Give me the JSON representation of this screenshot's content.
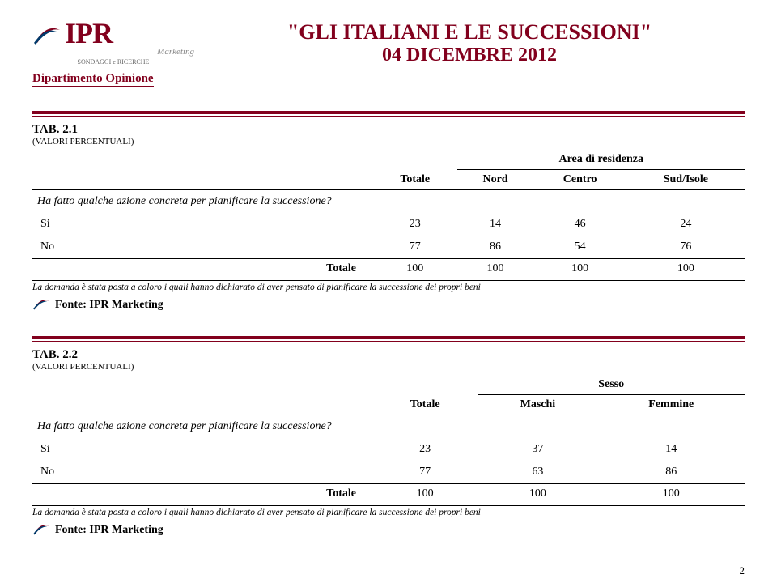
{
  "header": {
    "logo_main": "IPR",
    "logo_tagline": "Marketing",
    "logo_sub": "SONDAGGI e RICERCHE",
    "department": "Dipartimento Opinione",
    "title": "\"GLI ITALIANI E LE SUCCESSIONI\"",
    "date": "04 DICEMBRE 2012"
  },
  "colors": {
    "brand": "#82001d",
    "text": "#000000",
    "bg": "#ffffff"
  },
  "tables": [
    {
      "label": "TAB. 2.1",
      "sublabel": "(VALORI PERCENTUALI)",
      "group_header": "Area di residenza",
      "columns": [
        "Totale",
        "Nord",
        "Centro",
        "Sud/Isole"
      ],
      "question": "Ha fatto qualche azione concreta per pianificare la successione?",
      "rows": [
        {
          "label": "Si",
          "values": [
            23,
            14,
            46,
            24
          ]
        },
        {
          "label": "No",
          "values": [
            77,
            86,
            54,
            76
          ]
        }
      ],
      "total_label": "Totale",
      "totals": [
        100,
        100,
        100,
        100
      ],
      "footnote": "La domanda è stata posta a coloro i quali hanno dichiarato di aver pensato di pianificare la successione dei propri beni",
      "source": "Fonte: IPR Marketing"
    },
    {
      "label": "TAB. 2.2",
      "sublabel": "(VALORI PERCENTUALI)",
      "group_header": "Sesso",
      "columns": [
        "Totale",
        "Maschi",
        "Femmine"
      ],
      "question": "Ha fatto qualche azione concreta per pianificare la successione?",
      "rows": [
        {
          "label": "Si",
          "values": [
            23,
            37,
            14
          ]
        },
        {
          "label": "No",
          "values": [
            77,
            63,
            86
          ]
        }
      ],
      "total_label": "Totale",
      "totals": [
        100,
        100,
        100
      ],
      "footnote": "La domanda è stata posta a coloro i quali hanno dichiarato di aver pensato di pianificare la successione dei propri beni",
      "source": "Fonte: IPR Marketing"
    }
  ],
  "page_number": "2"
}
